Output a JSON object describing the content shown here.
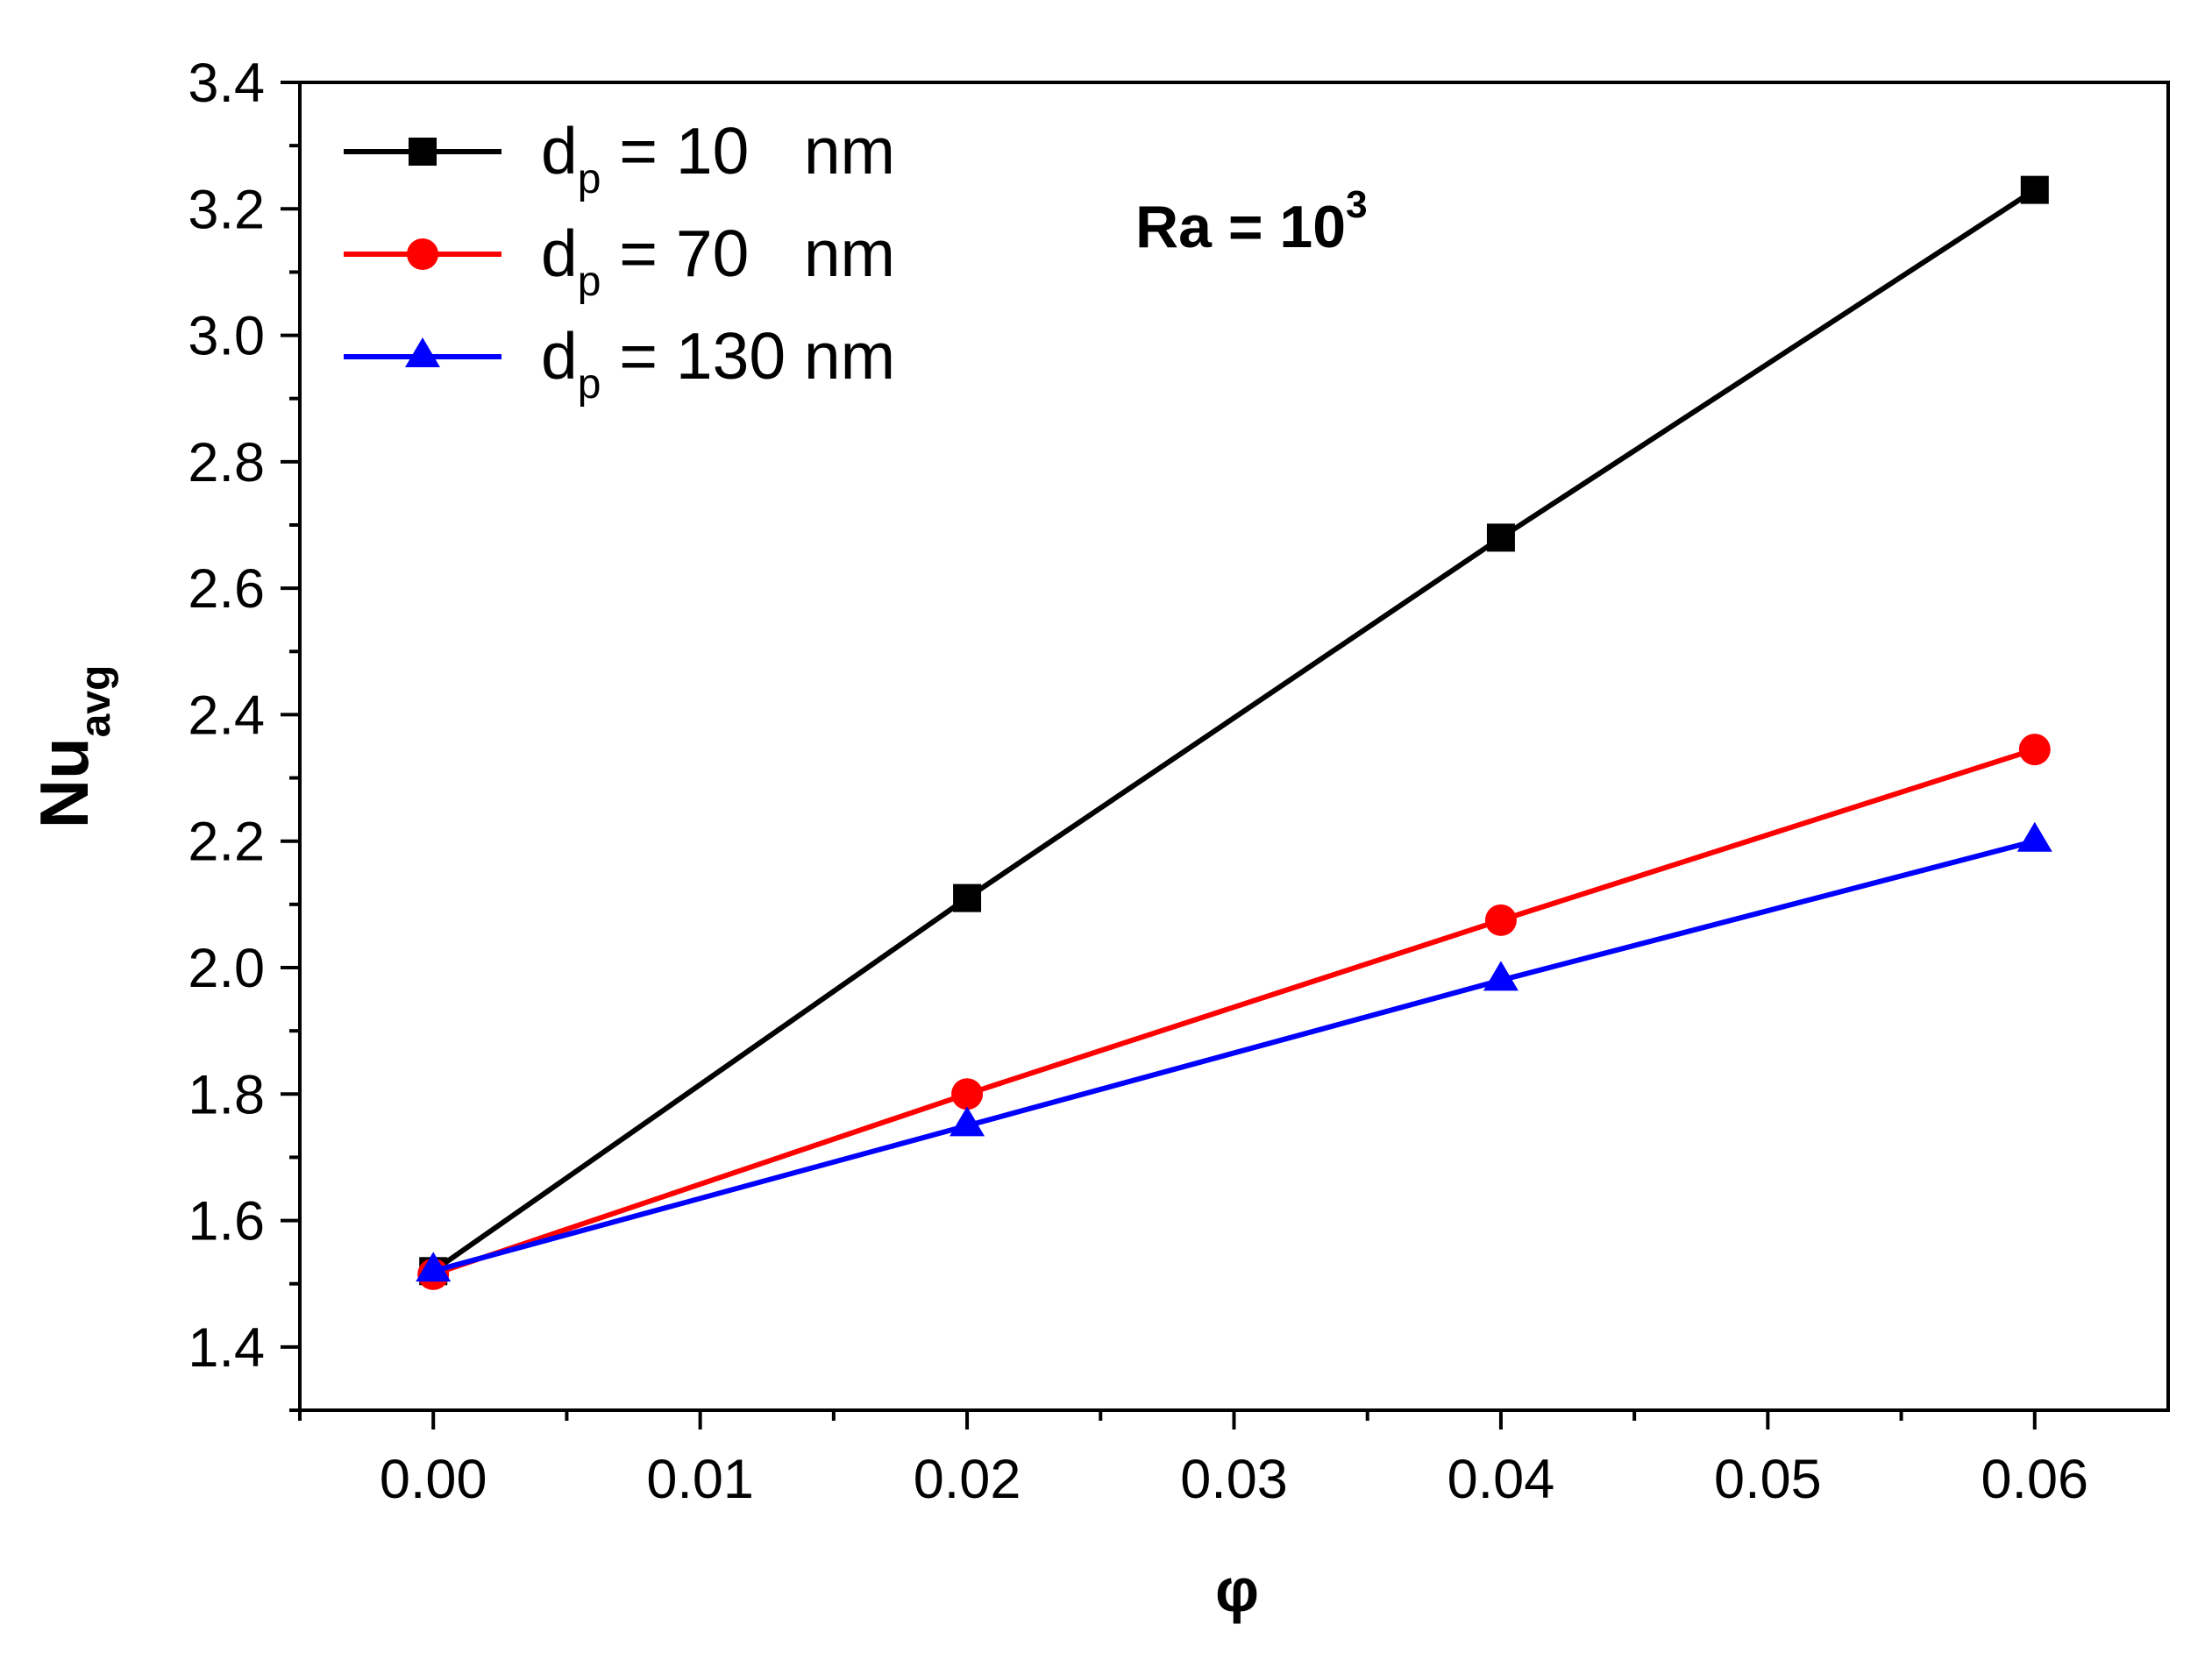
{
  "chart_data": {
    "type": "line",
    "x": [
      0.0,
      0.02,
      0.04,
      0.06
    ],
    "series": [
      {
        "name_main": "d",
        "name_sub": "p",
        "name_rest": " = 10   nm",
        "color": "#000000",
        "marker": "square",
        "values": [
          1.52,
          2.11,
          2.68,
          3.23
        ]
      },
      {
        "name_main": "d",
        "name_sub": "p",
        "name_rest": " = 70   nm",
        "color": "#ff0000",
        "marker": "circle",
        "values": [
          1.515,
          1.8,
          2.075,
          2.345
        ]
      },
      {
        "name_main": "d",
        "name_sub": "p",
        "name_rest": " = 130 nm",
        "color": "#0000ff",
        "marker": "triangle",
        "values": [
          1.52,
          1.75,
          1.98,
          2.2
        ]
      }
    ],
    "xlabel": "φ",
    "ylabel_main": "Nu",
    "ylabel_sub": "avg",
    "annotation_main": "Ra = 10",
    "annotation_sup": "3",
    "xlim": [
      -0.005,
      0.065
    ],
    "ylim": [
      1.3,
      3.4
    ],
    "xticks": [
      "0.00",
      "0.01",
      "0.02",
      "0.03",
      "0.04",
      "0.05",
      "0.06"
    ],
    "xtick_values": [
      0.0,
      0.01,
      0.02,
      0.03,
      0.04,
      0.05,
      0.06
    ],
    "yticks": [
      "1.4",
      "1.6",
      "1.8",
      "2.0",
      "2.2",
      "2.4",
      "2.6",
      "2.8",
      "3.0",
      "3.2",
      "3.4"
    ],
    "ytick_values": [
      1.4,
      1.6,
      1.8,
      2.0,
      2.2,
      2.4,
      2.6,
      2.8,
      3.0,
      3.2,
      3.4
    ],
    "grid": false,
    "legend_position": "top-left"
  }
}
